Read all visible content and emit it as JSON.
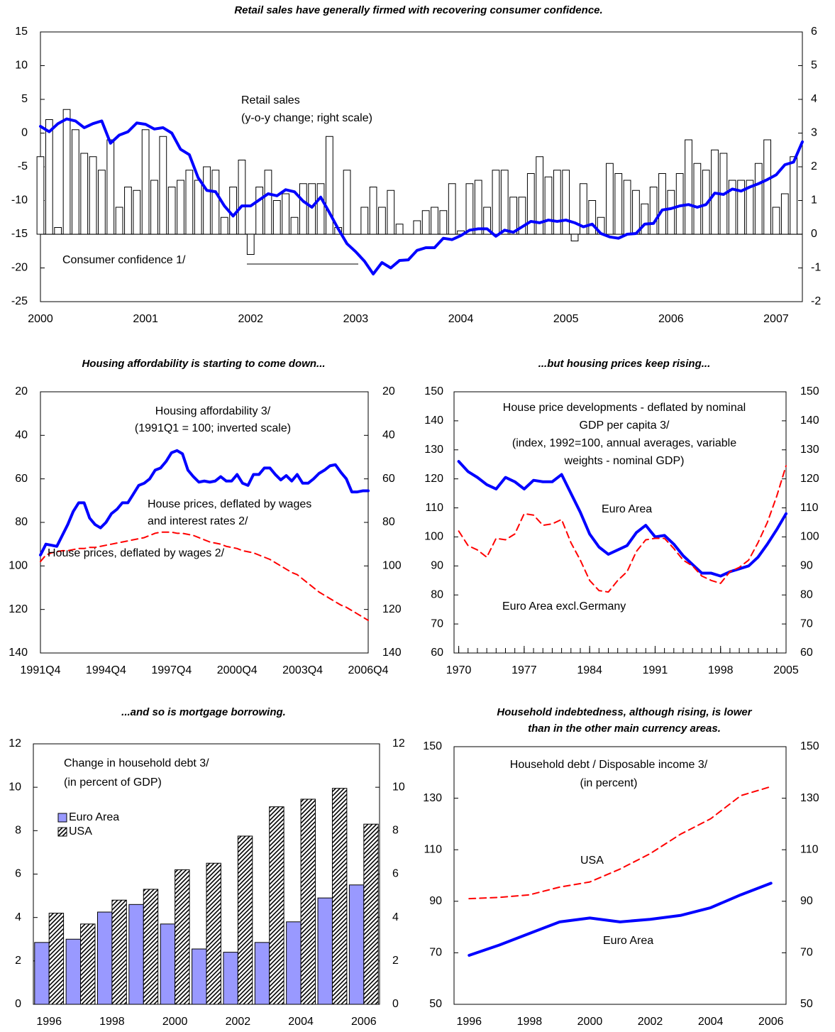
{
  "chart_data": [
    {
      "type": "combo",
      "title": "Retail sales have generally firmed with recovering consumer confidence.",
      "categories": [
        "2000",
        null,
        null,
        null,
        null,
        null,
        null,
        null,
        null,
        null,
        null,
        null,
        "2001",
        null,
        null,
        null,
        null,
        null,
        null,
        null,
        null,
        null,
        null,
        null,
        "2002",
        null,
        null,
        null,
        null,
        null,
        null,
        null,
        null,
        null,
        null,
        null,
        "2003",
        null,
        null,
        null,
        null,
        null,
        null,
        null,
        null,
        null,
        null,
        null,
        "2004",
        null,
        null,
        null,
        null,
        null,
        null,
        null,
        null,
        null,
        null,
        null,
        "2005",
        null,
        null,
        null,
        null,
        null,
        null,
        null,
        null,
        null,
        null,
        null,
        "2006",
        null,
        null,
        null,
        null,
        null,
        null,
        null,
        null,
        null,
        null,
        null,
        "2007",
        null,
        null,
        null
      ],
      "series": [
        {
          "type": "bar",
          "axis": "y2",
          "color": "#ffffff",
          "edgecolor": "#000000",
          "values": [
            2.3,
            3.4,
            0.2,
            3.7,
            3.1,
            2.4,
            2.3,
            1.9,
            2.8,
            0.8,
            1.4,
            1.3,
            3.1,
            1.6,
            2.9,
            1.4,
            1.6,
            1.9,
            1.6,
            2.0,
            1.9,
            0.5,
            1.4,
            2.2,
            -0.6,
            1.4,
            1.9,
            1.0,
            1.2,
            0.5,
            1.5,
            1.5,
            1.5,
            2.9,
            0.2,
            1.9,
            0.0,
            0.8,
            1.4,
            0.8,
            1.3,
            0.3,
            0.0,
            0.4,
            0.7,
            0.8,
            0.7,
            1.5,
            0.1,
            1.5,
            1.6,
            0.8,
            1.9,
            1.9,
            1.1,
            1.1,
            1.8,
            2.3,
            1.7,
            1.9,
            1.9,
            -0.2,
            1.5,
            1.0,
            0.5,
            2.1,
            1.8,
            1.6,
            1.3,
            0.9,
            1.4,
            1.8,
            1.3,
            1.8,
            2.8,
            2.1,
            1.9,
            2.5,
            2.4,
            1.6,
            1.6,
            1.6,
            2.1,
            2.8,
            0.8,
            1.2,
            2.3,
            null
          ]
        },
        {
          "type": "line",
          "color": "#0000ff",
          "values": [
            1.0,
            0.2,
            1.4,
            2.1,
            1.8,
            0.8,
            1.4,
            1.8,
            -1.5,
            -0.3,
            0.2,
            1.5,
            1.3,
            0.6,
            0.8,
            0.0,
            -2.4,
            -3.2,
            -6.6,
            -8.5,
            -8.7,
            -10.8,
            -12.3,
            -10.8,
            -10.8,
            -9.9,
            -9.0,
            -9.3,
            -8.4,
            -8.7,
            -10.1,
            -11.0,
            -9.5,
            -11.8,
            -14.2,
            -16.4,
            -17.6,
            -19.0,
            -20.9,
            -19.2,
            -20.0,
            -18.9,
            -18.8,
            -17.4,
            -17.0,
            -17.0,
            -15.6,
            -15.8,
            -15.2,
            -14.4,
            -14.2,
            -14.2,
            -15.3,
            -14.4,
            -14.7,
            -13.9,
            -13.1,
            -13.3,
            -12.9,
            -13.1,
            -12.9,
            -13.3,
            -13.9,
            -13.5,
            -14.9,
            -15.4,
            -15.6,
            -15.0,
            -14.9,
            -13.5,
            -13.4,
            -11.4,
            -11.2,
            -10.8,
            -10.6,
            -11.0,
            -10.6,
            -8.9,
            -9.1,
            -8.3,
            -8.6,
            -8.0,
            -7.5,
            -6.9,
            -6.2,
            -4.7,
            -4.3,
            -1.3
          ]
        }
      ],
      "ylim": [
        -25,
        15
      ],
      "yticks": [
        -25,
        -20,
        -15,
        -10,
        -5,
        0,
        5,
        10,
        15
      ],
      "y2lim": [
        -2,
        6
      ],
      "y2ticks": [
        -2,
        -1,
        0,
        1,
        2,
        3,
        4,
        5,
        6
      ],
      "annotations": [
        [
          "Retail sales",
          "(y-o-y change; right scale)"
        ],
        [
          "Consumer confidence 1/"
        ]
      ]
    },
    {
      "type": "line",
      "title": "Housing affordability is starting to come down...",
      "categories": [
        "1991Q4",
        null,
        null,
        null,
        null,
        null,
        null,
        null,
        null,
        null,
        null,
        null,
        "1994Q4",
        null,
        null,
        null,
        null,
        null,
        null,
        null,
        null,
        null,
        null,
        null,
        "1997Q4",
        null,
        null,
        null,
        null,
        null,
        null,
        null,
        null,
        null,
        null,
        null,
        "2000Q4",
        null,
        null,
        null,
        null,
        null,
        null,
        null,
        null,
        null,
        null,
        null,
        "2003Q4",
        null,
        null,
        null,
        null,
        null,
        null,
        null,
        null,
        null,
        null,
        null,
        "2006Q4"
      ],
      "series": [
        {
          "color": "#0000ff",
          "dash": false,
          "values": [
            95,
            90,
            90.5,
            91,
            86,
            81,
            75,
            71,
            71,
            78,
            81,
            82.5,
            80,
            76,
            74,
            71,
            71,
            67,
            63,
            62,
            60,
            56,
            55,
            52,
            48,
            47,
            48.5,
            56,
            59,
            61.5,
            61,
            61.5,
            61,
            59,
            61,
            61,
            58,
            62,
            63,
            58,
            58,
            55,
            55,
            58,
            60.5,
            58.5,
            61,
            58,
            62,
            62,
            60,
            57.5,
            56,
            54,
            53.5,
            57,
            60,
            66,
            66,
            65.5,
            65.5
          ]
        },
        {
          "color": "#ff0000",
          "dash": true,
          "values": [
            98,
            95,
            94,
            93.5,
            93,
            93,
            92.5,
            92,
            92,
            91.5,
            91.5,
            91,
            90.5,
            90,
            89.5,
            89,
            88.5,
            88,
            87.5,
            87,
            86,
            85,
            84.5,
            84.5,
            84.5,
            85,
            85,
            85.5,
            86,
            87,
            88,
            89,
            89.5,
            90,
            91,
            91.5,
            92,
            93,
            93.5,
            94,
            95,
            96,
            97,
            98.5,
            100,
            101.5,
            103,
            104,
            106,
            108,
            110,
            112,
            113.5,
            115,
            116.5,
            118,
            119,
            120.5,
            122,
            123.5,
            125
          ]
        }
      ],
      "ylim": [
        140,
        20
      ],
      "yticks": [
        20,
        40,
        60,
        80,
        100,
        120,
        140
      ],
      "y2lim": [
        140,
        20
      ],
      "y2ticks": [
        20,
        40,
        60,
        80,
        100,
        120,
        140
      ],
      "annotations": [
        [
          "Housing affordability 3/",
          "(1991Q1 = 100; inverted scale)"
        ],
        [
          "House prices, deflated by wages",
          "and interest rates 2/"
        ],
        [
          "House prices, deflated by wages 2/"
        ]
      ]
    },
    {
      "type": "line",
      "title": "...but housing prices keep rising...",
      "x": [
        1970,
        1971,
        1972,
        1973,
        1974,
        1975,
        1976,
        1977,
        1978,
        1979,
        1980,
        1981,
        1982,
        1983,
        1984,
        1985,
        1986,
        1987,
        1988,
        1989,
        1990,
        1991,
        1992,
        1993,
        1994,
        1995,
        1996,
        1997,
        1998,
        1999,
        2000,
        2001,
        2002,
        2003,
        2004,
        2005
      ],
      "xlim": [
        1969.5,
        2005
      ],
      "xticks": [
        1970,
        1977,
        1984,
        1991,
        1998,
        2005
      ],
      "series": [
        {
          "name": "Euro Area",
          "color": "#0000ff",
          "dash": false,
          "values": [
            126,
            122.5,
            120.5,
            118,
            116.5,
            120.5,
            119,
            116.5,
            119.5,
            119,
            119,
            121.5,
            115,
            108.5,
            101,
            96.5,
            94,
            95.5,
            97,
            101.5,
            104,
            100,
            100.5,
            97.5,
            93.5,
            90.5,
            87.5,
            87.5,
            86.5,
            88,
            89,
            90,
            93,
            97.5,
            102.5,
            108
          ]
        },
        {
          "name": "Euro Area excl.Germany",
          "color": "#ff0000",
          "dash": true,
          "values": [
            102,
            97,
            95.5,
            93,
            99.5,
            99,
            101,
            108,
            107.5,
            104,
            104.5,
            106,
            98,
            92,
            85,
            81.5,
            81,
            85,
            88,
            95,
            99,
            99.5,
            99.5,
            96,
            92,
            90,
            86.5,
            85,
            84,
            88,
            89.5,
            92,
            98,
            105,
            114,
            124.5
          ]
        }
      ],
      "ylim": [
        60,
        150
      ],
      "yticks": [
        60,
        70,
        80,
        90,
        100,
        110,
        120,
        130,
        140,
        150
      ],
      "y2lim": [
        60,
        150
      ],
      "y2ticks": [
        60,
        70,
        80,
        90,
        100,
        110,
        120,
        130,
        140,
        150
      ],
      "annotations": [
        [
          "House price developments - deflated by nominal",
          "GDP per capita 3/",
          "(index, 1992=100, annual averages, variable",
          "weights - nominal GDP)"
        ]
      ]
    },
    {
      "type": "bar",
      "title": "...and so is mortgage borrowing.",
      "categories": [
        "1996",
        null,
        "1998",
        null,
        "2000",
        null,
        "2002",
        null,
        "2004",
        null,
        "2006"
      ],
      "series": [
        {
          "name": "Euro Area",
          "color": "#9999ff",
          "edgecolor": "#000000",
          "values": [
            2.85,
            3.0,
            4.25,
            4.6,
            3.7,
            2.55,
            2.4,
            2.85,
            3.8,
            4.9,
            5.5
          ]
        },
        {
          "name": "USA",
          "color": "#ffffff",
          "hatch": "#000000",
          "edgecolor": "#000000",
          "values": [
            4.2,
            3.7,
            4.8,
            5.3,
            6.2,
            6.5,
            7.75,
            9.1,
            9.45,
            9.95,
            8.3
          ]
        }
      ],
      "ylim": [
        0,
        12
      ],
      "yticks": [
        0,
        2,
        4,
        6,
        8,
        10,
        12
      ],
      "y2lim": [
        0,
        12
      ],
      "y2ticks": [
        0,
        2,
        4,
        6,
        8,
        10,
        12
      ],
      "legend": "upper left",
      "annotations": [
        [
          "Change in household debt 3/",
          "(in percent of GDP)"
        ]
      ]
    },
    {
      "type": "line",
      "title": [
        "Household indebtedness, although rising, is lower",
        "than in the other main currency areas."
      ],
      "categories": [
        "1996",
        null,
        "1998",
        null,
        "2000",
        null,
        "2002",
        null,
        "2004",
        null,
        "2006"
      ],
      "series": [
        {
          "name": "USA",
          "color": "#ff0000",
          "dash": true,
          "values": [
            91,
            91.5,
            92.5,
            95.5,
            97.5,
            102.5,
            108.5,
            116,
            122,
            131,
            134.5
          ]
        },
        {
          "name": "Euro Area",
          "color": "#0000ff",
          "dash": false,
          "values": [
            69,
            73,
            77.5,
            82,
            83.5,
            82,
            83,
            84.5,
            87.5,
            92.5,
            97
          ]
        }
      ],
      "ylim": [
        50,
        150
      ],
      "yticks": [
        50,
        70,
        90,
        110,
        130,
        150
      ],
      "y2lim": [
        50,
        150
      ],
      "y2ticks": [
        50,
        70,
        90,
        110,
        130,
        150
      ],
      "annotations": [
        [
          "Household debt / Disposable income 3/",
          "(in percent)"
        ]
      ]
    }
  ]
}
